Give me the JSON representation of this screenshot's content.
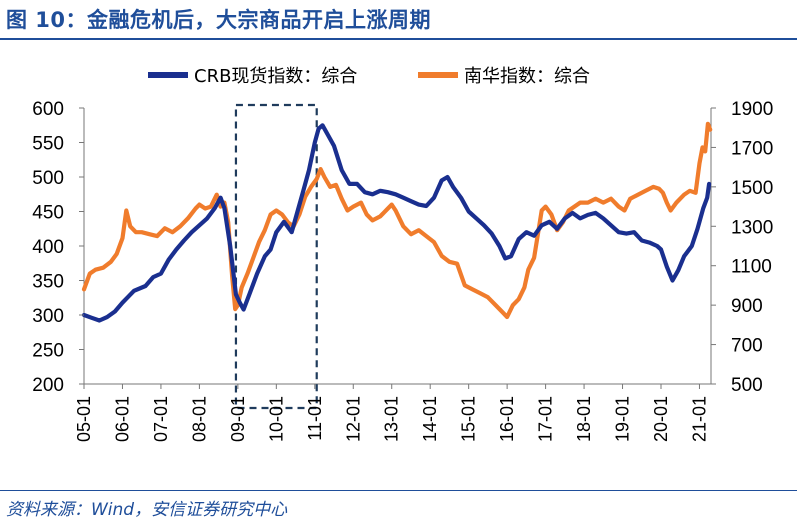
{
  "figure": {
    "title": "图 10：金融危机后，大宗商品开启上涨周期",
    "source": "资料来源：Wind，安信证券研究中心"
  },
  "colors": {
    "crb": "#1a2f8f",
    "nanhua": "#f07c2c",
    "highlight": "#1f3b5c",
    "accent": "#1f4e9a"
  },
  "chart_data": {
    "type": "line",
    "x_tick_labels": [
      "05-01",
      "06-01",
      "07-01",
      "08-01",
      "09-01",
      "10-01",
      "11-01",
      "12-01",
      "13-01",
      "14-01",
      "15-01",
      "16-01",
      "17-01",
      "18-01",
      "19-01",
      "20-01",
      "21-01"
    ],
    "y_left": {
      "ylim": [
        200,
        600
      ],
      "ticks": [
        200,
        250,
        300,
        350,
        400,
        450,
        500,
        550,
        600
      ]
    },
    "y_right": {
      "ylim": [
        500,
        1900
      ],
      "ticks": [
        500,
        700,
        900,
        1100,
        1300,
        1500,
        1700,
        1900
      ]
    },
    "legend_position": "top-center",
    "highlight_box": {
      "x_start": 2008.95,
      "x_end": 2011.05
    },
    "series": [
      {
        "name": "CRB现货指数：综合",
        "axis": "left",
        "points": [
          [
            2005.0,
            300
          ],
          [
            2005.2,
            296
          ],
          [
            2005.4,
            292
          ],
          [
            2005.6,
            297
          ],
          [
            2005.8,
            305
          ],
          [
            2006.0,
            318
          ],
          [
            2006.3,
            335
          ],
          [
            2006.6,
            342
          ],
          [
            2006.8,
            355
          ],
          [
            2007.0,
            360
          ],
          [
            2007.2,
            380
          ],
          [
            2007.4,
            395
          ],
          [
            2007.6,
            408
          ],
          [
            2007.8,
            420
          ],
          [
            2008.0,
            430
          ],
          [
            2008.2,
            440
          ],
          [
            2008.4,
            455
          ],
          [
            2008.55,
            470
          ],
          [
            2008.65,
            455
          ],
          [
            2008.8,
            400
          ],
          [
            2008.95,
            330
          ],
          [
            2009.05,
            318
          ],
          [
            2009.15,
            308
          ],
          [
            2009.3,
            330
          ],
          [
            2009.5,
            360
          ],
          [
            2009.7,
            385
          ],
          [
            2009.85,
            395
          ],
          [
            2010.0,
            420
          ],
          [
            2010.2,
            435
          ],
          [
            2010.4,
            420
          ],
          [
            2010.55,
            450
          ],
          [
            2010.7,
            480
          ],
          [
            2010.85,
            510
          ],
          [
            2011.0,
            550
          ],
          [
            2011.1,
            570
          ],
          [
            2011.2,
            575
          ],
          [
            2011.35,
            560
          ],
          [
            2011.5,
            545
          ],
          [
            2011.7,
            510
          ],
          [
            2011.9,
            490
          ],
          [
            2012.1,
            490
          ],
          [
            2012.3,
            478
          ],
          [
            2012.5,
            475
          ],
          [
            2012.7,
            480
          ],
          [
            2012.9,
            478
          ],
          [
            2013.1,
            475
          ],
          [
            2013.3,
            470
          ],
          [
            2013.5,
            465
          ],
          [
            2013.7,
            460
          ],
          [
            2013.9,
            458
          ],
          [
            2014.1,
            470
          ],
          [
            2014.3,
            495
          ],
          [
            2014.45,
            500
          ],
          [
            2014.6,
            485
          ],
          [
            2014.8,
            470
          ],
          [
            2015.0,
            450
          ],
          [
            2015.2,
            440
          ],
          [
            2015.4,
            430
          ],
          [
            2015.6,
            418
          ],
          [
            2015.8,
            400
          ],
          [
            2015.95,
            382
          ],
          [
            2016.1,
            385
          ],
          [
            2016.3,
            410
          ],
          [
            2016.5,
            420
          ],
          [
            2016.7,
            415
          ],
          [
            2016.9,
            430
          ],
          [
            2017.1,
            435
          ],
          [
            2017.3,
            425
          ],
          [
            2017.5,
            440
          ],
          [
            2017.7,
            448
          ],
          [
            2017.9,
            440
          ],
          [
            2018.1,
            445
          ],
          [
            2018.3,
            448
          ],
          [
            2018.5,
            440
          ],
          [
            2018.7,
            430
          ],
          [
            2018.9,
            420
          ],
          [
            2019.1,
            418
          ],
          [
            2019.3,
            420
          ],
          [
            2019.5,
            408
          ],
          [
            2019.7,
            405
          ],
          [
            2019.9,
            400
          ],
          [
            2020.0,
            395
          ],
          [
            2020.15,
            370
          ],
          [
            2020.3,
            350
          ],
          [
            2020.45,
            365
          ],
          [
            2020.6,
            385
          ],
          [
            2020.8,
            400
          ],
          [
            2020.95,
            425
          ],
          [
            2021.1,
            455
          ],
          [
            2021.2,
            470
          ],
          [
            2021.25,
            490
          ]
        ]
      },
      {
        "name": "南华指数：综合",
        "axis": "right",
        "points": [
          [
            2005.0,
            980
          ],
          [
            2005.15,
            1060
          ],
          [
            2005.3,
            1080
          ],
          [
            2005.5,
            1090
          ],
          [
            2005.7,
            1120
          ],
          [
            2005.85,
            1160
          ],
          [
            2006.0,
            1240
          ],
          [
            2006.1,
            1380
          ],
          [
            2006.2,
            1300
          ],
          [
            2006.35,
            1270
          ],
          [
            2006.5,
            1270
          ],
          [
            2006.7,
            1260
          ],
          [
            2006.9,
            1250
          ],
          [
            2007.1,
            1290
          ],
          [
            2007.3,
            1270
          ],
          [
            2007.5,
            1300
          ],
          [
            2007.7,
            1340
          ],
          [
            2007.9,
            1390
          ],
          [
            2008.0,
            1410
          ],
          [
            2008.15,
            1390
          ],
          [
            2008.3,
            1400
          ],
          [
            2008.45,
            1460
          ],
          [
            2008.55,
            1400
          ],
          [
            2008.65,
            1420
          ],
          [
            2008.75,
            1320
          ],
          [
            2008.85,
            1050
          ],
          [
            2008.93,
            880
          ],
          [
            2009.0,
            900
          ],
          [
            2009.1,
            990
          ],
          [
            2009.25,
            1060
          ],
          [
            2009.4,
            1140
          ],
          [
            2009.55,
            1220
          ],
          [
            2009.7,
            1280
          ],
          [
            2009.85,
            1360
          ],
          [
            2010.0,
            1380
          ],
          [
            2010.15,
            1360
          ],
          [
            2010.3,
            1320
          ],
          [
            2010.45,
            1300
          ],
          [
            2010.6,
            1360
          ],
          [
            2010.75,
            1450
          ],
          [
            2010.9,
            1500
          ],
          [
            2011.05,
            1540
          ],
          [
            2011.15,
            1590
          ],
          [
            2011.25,
            1550
          ],
          [
            2011.4,
            1500
          ],
          [
            2011.55,
            1510
          ],
          [
            2011.7,
            1440
          ],
          [
            2011.85,
            1380
          ],
          [
            2012.0,
            1400
          ],
          [
            2012.2,
            1420
          ],
          [
            2012.35,
            1360
          ],
          [
            2012.5,
            1330
          ],
          [
            2012.7,
            1350
          ],
          [
            2012.9,
            1390
          ],
          [
            2013.0,
            1410
          ],
          [
            2013.1,
            1380
          ],
          [
            2013.3,
            1300
          ],
          [
            2013.5,
            1260
          ],
          [
            2013.7,
            1280
          ],
          [
            2013.9,
            1250
          ],
          [
            2014.1,
            1220
          ],
          [
            2014.3,
            1150
          ],
          [
            2014.5,
            1120
          ],
          [
            2014.7,
            1110
          ],
          [
            2014.9,
            1000
          ],
          [
            2015.1,
            980
          ],
          [
            2015.3,
            960
          ],
          [
            2015.5,
            940
          ],
          [
            2015.7,
            900
          ],
          [
            2015.9,
            860
          ],
          [
            2016.0,
            840
          ],
          [
            2016.15,
            900
          ],
          [
            2016.3,
            930
          ],
          [
            2016.45,
            990
          ],
          [
            2016.55,
            1080
          ],
          [
            2016.7,
            1140
          ],
          [
            2016.8,
            1260
          ],
          [
            2016.9,
            1380
          ],
          [
            2017.0,
            1400
          ],
          [
            2017.15,
            1360
          ],
          [
            2017.3,
            1280
          ],
          [
            2017.45,
            1320
          ],
          [
            2017.6,
            1380
          ],
          [
            2017.75,
            1400
          ],
          [
            2017.9,
            1420
          ],
          [
            2018.1,
            1420
          ],
          [
            2018.3,
            1440
          ],
          [
            2018.5,
            1420
          ],
          [
            2018.7,
            1440
          ],
          [
            2018.9,
            1400
          ],
          [
            2019.05,
            1380
          ],
          [
            2019.2,
            1440
          ],
          [
            2019.4,
            1460
          ],
          [
            2019.6,
            1480
          ],
          [
            2019.8,
            1500
          ],
          [
            2019.95,
            1490
          ],
          [
            2020.05,
            1470
          ],
          [
            2020.15,
            1420
          ],
          [
            2020.25,
            1380
          ],
          [
            2020.4,
            1420
          ],
          [
            2020.6,
            1460
          ],
          [
            2020.75,
            1480
          ],
          [
            2020.9,
            1470
          ],
          [
            2021.0,
            1620
          ],
          [
            2021.08,
            1700
          ],
          [
            2021.15,
            1680
          ],
          [
            2021.22,
            1820
          ],
          [
            2021.28,
            1790
          ]
        ]
      }
    ]
  }
}
